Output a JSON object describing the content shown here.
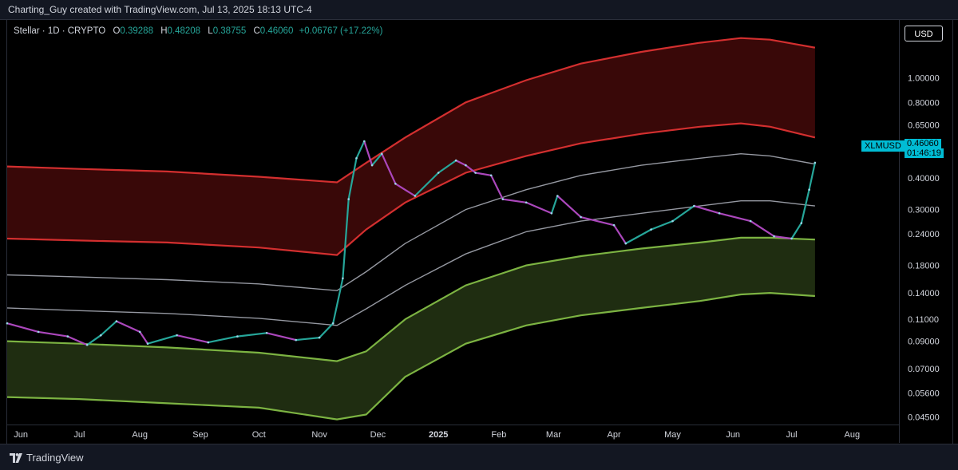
{
  "header": {
    "credit": "Charting_Guy created with TradingView.com, Jul 13, 2025 18:13 UTC-4"
  },
  "legend": {
    "symbol": "Stellar · 1D · CRYPTO",
    "open_label": "O",
    "open": "0.39288",
    "high_label": "H",
    "high": "0.48208",
    "low_label": "L",
    "low": "0.38755",
    "close_label": "C",
    "close": "0.46060",
    "change": "+0.06767 (+17.22%)"
  },
  "currency_button": "USD",
  "last_price": {
    "symbol_tag": "XLMUSD",
    "price": "0.46060",
    "countdown": "01:46:19"
  },
  "footer": {
    "brand": "TradingView"
  },
  "colors": {
    "up": "#26a69a",
    "down": "#ab47bc",
    "upper_band": "#d32f2f",
    "lower_band": "#7cb342",
    "mid": "#9598a1",
    "tag": "#00bcd4"
  },
  "chart_data": {
    "type": "line",
    "title": "",
    "y_scale": "log",
    "ylim": [
      0.042,
      1.7
    ],
    "xlim": [
      "2024-05-25",
      "2025-08-25"
    ],
    "x_tick_labels": [
      {
        "label": "Jun",
        "date": "2024-06-01"
      },
      {
        "label": "Jul",
        "date": "2024-07-01"
      },
      {
        "label": "Aug",
        "date": "2024-08-01"
      },
      {
        "label": "Sep",
        "date": "2024-09-01"
      },
      {
        "label": "Oct",
        "date": "2024-10-01"
      },
      {
        "label": "Nov",
        "date": "2024-11-01"
      },
      {
        "label": "Dec",
        "date": "2024-12-01"
      },
      {
        "label": "2025",
        "date": "2025-01-01"
      },
      {
        "label": "Feb",
        "date": "2025-02-01"
      },
      {
        "label": "Mar",
        "date": "2025-03-01"
      },
      {
        "label": "Apr",
        "date": "2025-04-01"
      },
      {
        "label": "May",
        "date": "2025-05-01"
      },
      {
        "label": "Jun",
        "date": "2025-06-01"
      },
      {
        "label": "Jul",
        "date": "2025-07-01"
      },
      {
        "label": "Aug",
        "date": "2025-08-01"
      }
    ],
    "y_tick_labels": [
      {
        "label": "1.00000",
        "value": 1.0
      },
      {
        "label": "0.80000",
        "value": 0.8
      },
      {
        "label": "0.65000",
        "value": 0.65
      },
      {
        "label": "0.50000",
        "value": 0.5
      },
      {
        "label": "0.40000",
        "value": 0.4
      },
      {
        "label": "0.30000",
        "value": 0.3
      },
      {
        "label": "0.24000",
        "value": 0.24
      },
      {
        "label": "0.18000",
        "value": 0.18
      },
      {
        "label": "0.14000",
        "value": 0.14
      },
      {
        "label": "0.11000",
        "value": 0.11
      },
      {
        "label": "0.09000",
        "value": 0.09
      },
      {
        "label": "0.07000",
        "value": 0.07
      },
      {
        "label": "0.05600",
        "value": 0.056
      },
      {
        "label": "0.04500",
        "value": 0.045
      }
    ],
    "bands": {
      "x": [
        "2024-05-25",
        "2024-07-01",
        "2024-08-15",
        "2024-10-01",
        "2024-11-10",
        "2024-11-25",
        "2024-12-15",
        "2025-01-15",
        "2025-02-15",
        "2025-03-15",
        "2025-04-15",
        "2025-05-15",
        "2025-06-05",
        "2025-06-20",
        "2025-07-13"
      ],
      "red_top": [
        0.445,
        0.435,
        0.425,
        0.405,
        0.385,
        0.46,
        0.58,
        0.8,
        0.98,
        1.14,
        1.27,
        1.38,
        1.44,
        1.42,
        1.32
      ],
      "red_bottom": [
        0.23,
        0.226,
        0.222,
        0.212,
        0.198,
        0.25,
        0.32,
        0.42,
        0.49,
        0.55,
        0.6,
        0.64,
        0.66,
        0.64,
        0.58
      ],
      "grey_upper": [
        0.165,
        0.162,
        0.158,
        0.152,
        0.143,
        0.17,
        0.22,
        0.3,
        0.36,
        0.41,
        0.45,
        0.48,
        0.5,
        0.49,
        0.455
      ],
      "grey_lower": [
        0.122,
        0.119,
        0.116,
        0.111,
        0.104,
        0.121,
        0.15,
        0.2,
        0.245,
        0.27,
        0.29,
        0.31,
        0.325,
        0.325,
        0.31
      ],
      "green_top": [
        0.09,
        0.088,
        0.085,
        0.081,
        0.075,
        0.082,
        0.11,
        0.15,
        0.18,
        0.196,
        0.21,
        0.222,
        0.232,
        0.232,
        0.228
      ],
      "green_bottom": [
        0.054,
        0.053,
        0.051,
        0.049,
        0.044,
        0.046,
        0.065,
        0.088,
        0.104,
        0.114,
        0.122,
        0.13,
        0.138,
        0.14,
        0.136
      ]
    },
    "price_series": {
      "name": "",
      "x": [
        "2024-05-25",
        "2024-06-10",
        "2024-06-25",
        "2024-07-05",
        "2024-07-12",
        "2024-07-20",
        "2024-08-01",
        "2024-08-05",
        "2024-08-20",
        "2024-09-05",
        "2024-09-20",
        "2024-10-05",
        "2024-10-20",
        "2024-11-01",
        "2024-11-08",
        "2024-11-13",
        "2024-11-16",
        "2024-11-20",
        "2024-11-24",
        "2024-11-28",
        "2024-12-03",
        "2024-12-10",
        "2024-12-20",
        "2025-01-01",
        "2025-01-10",
        "2025-01-15",
        "2025-01-20",
        "2025-01-28",
        "2025-02-03",
        "2025-02-15",
        "2025-02-28",
        "2025-03-03",
        "2025-03-15",
        "2025-04-01",
        "2025-04-07",
        "2025-04-20",
        "2025-05-01",
        "2025-05-12",
        "2025-05-25",
        "2025-06-10",
        "2025-06-22",
        "2025-07-01",
        "2025-07-06",
        "2025-07-10",
        "2025-07-13"
      ],
      "values": [
        0.106,
        0.098,
        0.094,
        0.087,
        0.095,
        0.108,
        0.098,
        0.088,
        0.095,
        0.089,
        0.094,
        0.097,
        0.091,
        0.093,
        0.106,
        0.16,
        0.33,
        0.48,
        0.56,
        0.45,
        0.5,
        0.38,
        0.34,
        0.42,
        0.47,
        0.45,
        0.42,
        0.41,
        0.33,
        0.32,
        0.29,
        0.34,
        0.28,
        0.26,
        0.22,
        0.25,
        0.27,
        0.31,
        0.29,
        0.27,
        0.235,
        0.23,
        0.265,
        0.36,
        0.4606
      ]
    },
    "grid": false,
    "legend_position": "top-left"
  }
}
